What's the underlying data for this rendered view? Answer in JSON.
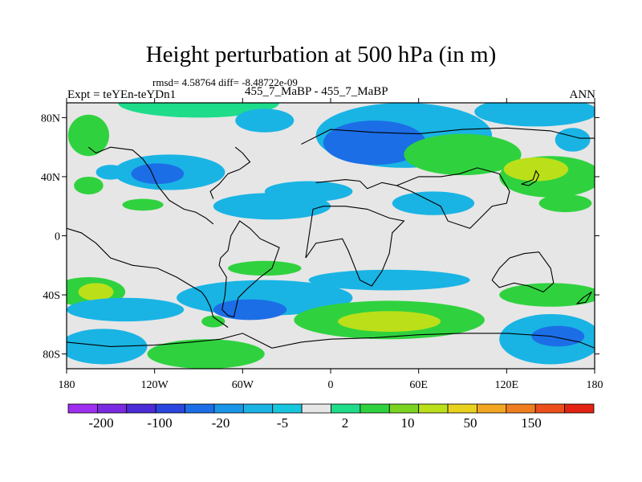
{
  "chart_data": {
    "type": "heatmap",
    "title": "Height perturbation at 500 hPa (in m)",
    "stats_line": "rmsd= 4.58764 diff= -8.48722e-09",
    "left_label": "Expt = teYEn-teYDn1",
    "center_label": "455_7_MaBP - 455_7_MaBP",
    "right_label": "ANN",
    "x_range": [
      -180,
      180
    ],
    "y_range": [
      -90,
      90
    ],
    "x_ticks": [
      {
        "value": -180,
        "label": "180"
      },
      {
        "value": -120,
        "label": "120W"
      },
      {
        "value": -60,
        "label": "60W"
      },
      {
        "value": 0,
        "label": "0"
      },
      {
        "value": 60,
        "label": "60E"
      },
      {
        "value": 120,
        "label": "120E"
      },
      {
        "value": 180,
        "label": "180"
      }
    ],
    "y_ticks": [
      {
        "value": 80,
        "label": "80N"
      },
      {
        "value": 40,
        "label": "40N"
      },
      {
        "value": 0,
        "label": "0"
      },
      {
        "value": -40,
        "label": "40S"
      },
      {
        "value": -80,
        "label": "80S"
      }
    ],
    "colorbar": {
      "colors": [
        "#9f2ff0",
        "#7a2ae0",
        "#4b2cd6",
        "#2a46de",
        "#1c6ee6",
        "#1897e8",
        "#19b4e4",
        "#16c6de",
        "#e6e6e6",
        "#1edc8a",
        "#2fd23e",
        "#7ad421",
        "#bbe01a",
        "#e8d21e",
        "#f2a622",
        "#ee7e20",
        "#ec4f1c",
        "#e22314"
      ],
      "labels": [
        "-200",
        "-100",
        "-20",
        "-5",
        "2",
        "10",
        "50",
        "150"
      ]
    },
    "zero_color": "#e6e6e6",
    "fields": [
      {
        "lon": -165,
        "lat": 68,
        "rlon": 14,
        "rlat": 14,
        "value": 8
      },
      {
        "lon": -90,
        "lat": 90,
        "rlon": 55,
        "rlat": 10,
        "value": 4
      },
      {
        "lon": -45,
        "lat": 78,
        "rlon": 20,
        "rlat": 8,
        "value": -5
      },
      {
        "lon": 50,
        "lat": 68,
        "rlon": 60,
        "rlat": 22,
        "value": -6
      },
      {
        "lon": 30,
        "lat": 63,
        "rlon": 35,
        "rlat": 15,
        "value": -20
      },
      {
        "lon": 140,
        "lat": 84,
        "rlon": 42,
        "rlat": 10,
        "value": -6
      },
      {
        "lon": 165,
        "lat": 65,
        "rlon": 12,
        "rlat": 8,
        "value": -6
      },
      {
        "lon": -110,
        "lat": 43,
        "rlon": 38,
        "rlat": 12,
        "value": -6
      },
      {
        "lon": -118,
        "lat": 42,
        "rlon": 18,
        "rlat": 7,
        "value": -20
      },
      {
        "lon": -150,
        "lat": 43,
        "rlon": 10,
        "rlat": 5,
        "value": -6
      },
      {
        "lon": -40,
        "lat": 20,
        "rlon": 40,
        "rlat": 9,
        "value": -6
      },
      {
        "lon": -15,
        "lat": 30,
        "rlon": 30,
        "rlat": 7,
        "value": -6
      },
      {
        "lon": 70,
        "lat": 22,
        "rlon": 28,
        "rlat": 8,
        "value": -6
      },
      {
        "lon": 90,
        "lat": 55,
        "rlon": 40,
        "rlat": 14,
        "value": 10
      },
      {
        "lon": 150,
        "lat": 40,
        "rlon": 35,
        "rlat": 14,
        "value": 10
      },
      {
        "lon": 140,
        "lat": 45,
        "rlon": 22,
        "rlat": 8,
        "value": 30
      },
      {
        "lon": 160,
        "lat": 22,
        "rlon": 18,
        "rlat": 6,
        "value": 10
      },
      {
        "lon": -128,
        "lat": 21,
        "rlon": 14,
        "rlat": 4,
        "value": 10
      },
      {
        "lon": -165,
        "lat": 34,
        "rlon": 10,
        "rlat": 6,
        "value": 10
      },
      {
        "lon": -45,
        "lat": -22,
        "rlon": 25,
        "rlat": 5,
        "value": 10
      },
      {
        "lon": -165,
        "lat": -38,
        "rlon": 25,
        "rlat": 10,
        "value": 10
      },
      {
        "lon": -160,
        "lat": -38,
        "rlon": 12,
        "rlat": 6,
        "value": 30
      },
      {
        "lon": -140,
        "lat": -50,
        "rlon": 40,
        "rlat": 8,
        "value": -6
      },
      {
        "lon": -45,
        "lat": -42,
        "rlon": 60,
        "rlat": 12,
        "value": -6
      },
      {
        "lon": -55,
        "lat": -50,
        "rlon": 25,
        "rlat": 7,
        "value": -20
      },
      {
        "lon": 40,
        "lat": -30,
        "rlon": 55,
        "rlat": 7,
        "value": -6
      },
      {
        "lon": 40,
        "lat": -57,
        "rlon": 65,
        "rlat": 13,
        "value": 10
      },
      {
        "lon": 40,
        "lat": -58,
        "rlon": 35,
        "rlat": 7,
        "value": 30
      },
      {
        "lon": -85,
        "lat": -80,
        "rlon": 40,
        "rlat": 10,
        "value": 8
      },
      {
        "lon": 150,
        "lat": -40,
        "rlon": 35,
        "rlat": 8,
        "value": 10
      },
      {
        "lon": 150,
        "lat": -70,
        "rlon": 35,
        "rlat": 17,
        "value": -6
      },
      {
        "lon": 155,
        "lat": -68,
        "rlon": 18,
        "rlat": 7,
        "value": -20
      },
      {
        "lon": -155,
        "lat": -75,
        "rlon": 30,
        "rlat": 12,
        "value": -6
      },
      {
        "lon": -80,
        "lat": -58,
        "rlon": 8,
        "rlat": 4,
        "value": 10
      }
    ]
  }
}
